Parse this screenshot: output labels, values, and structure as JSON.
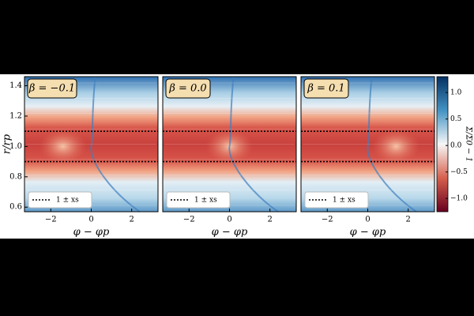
{
  "chart_data": [
    {
      "type": "heatmap",
      "title": "β = −0.1",
      "xlabel": "φ − φp",
      "ylabel": "r/rp",
      "xlim": [
        -3.3,
        3.3
      ],
      "ylim": [
        0.57,
        1.46
      ],
      "xticks": [
        {
          "value": -2,
          "label": "−2"
        },
        0,
        2
      ],
      "yticks": [
        {
          "value": 0.6,
          "label": "0.6"
        },
        {
          "value": 0.8,
          "label": "0.8"
        },
        {
          "value": 1.0,
          "label": "1.0"
        },
        {
          "value": 1.2,
          "label": "1.2"
        },
        {
          "value": 1.4,
          "label": "1.4"
        }
      ],
      "hlines": [
        0.9,
        1.1
      ],
      "legend": "1 ± xs",
      "vortex_x": -1.4
    },
    {
      "type": "heatmap",
      "title": "β = 0.0",
      "xlabel": "φ − φp",
      "xlim": [
        -3.3,
        3.3
      ],
      "ylim": [
        0.57,
        1.46
      ],
      "xticks": [
        {
          "value": -2,
          "label": "−2"
        },
        0,
        2
      ],
      "hlines": [
        0.9,
        1.1
      ],
      "legend": "1 ± xs",
      "vortex_x": 0
    },
    {
      "type": "heatmap",
      "title": "β = 0.1",
      "xlabel": "φ − φp",
      "xlim": [
        -3.3,
        3.3
      ],
      "ylim": [
        0.57,
        1.46
      ],
      "xticks": [
        {
          "value": -2,
          "label": "−2"
        },
        0,
        2
      ],
      "hlines": [
        0.9,
        1.1
      ],
      "legend": "1 ± xs",
      "vortex_x": 1.4,
      "colorbar": {
        "label": "Σ/Σ0 − 1",
        "clim": [
          -1.25,
          1.3
        ],
        "ticks": [
          {
            "value": 1.0,
            "label": "1.0"
          },
          {
            "value": 0.5,
            "label": "0.5"
          },
          {
            "value": 0.0,
            "label": "0.0"
          },
          {
            "value": -0.5,
            "label": "−0.5"
          },
          {
            "value": -1.0,
            "label": "−1.0"
          }
        ]
      }
    }
  ]
}
